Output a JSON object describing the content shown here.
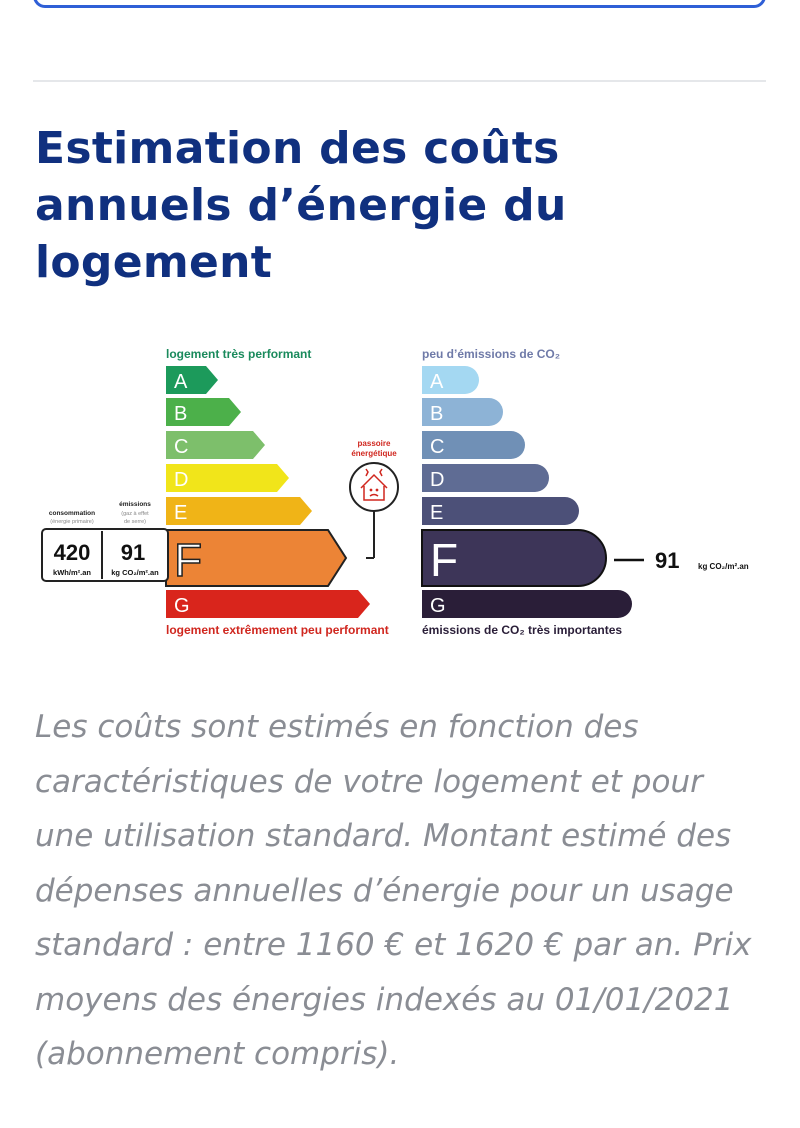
{
  "page": {
    "title": "Estimation des coûts annuels d’énergie du logement",
    "description": "Les coûts sont estimés en fonction des caractéristiques de votre logement et pour une utilisation standard. Montant estimé des dépenses annuelles d’énergie pour un usage standard : entre 1160 € et 1620 € par an. Prix moyens des énergies indexés au 01/01/2021 (abonnement compris)."
  },
  "energy_label": {
    "top_label": "logement très performant",
    "bottom_label": "logement extrêmement peu performant",
    "top_color": "#1a8a5c",
    "bottom_color": "#d0271f",
    "classes": [
      {
        "letter": "A",
        "color": "#1c9a5b"
      },
      {
        "letter": "B",
        "color": "#4cb04a"
      },
      {
        "letter": "C",
        "color": "#7dbf6b"
      },
      {
        "letter": "D",
        "color": "#f1e51a"
      },
      {
        "letter": "E",
        "color": "#f0b417"
      },
      {
        "letter": "F",
        "color": "#ec8436"
      },
      {
        "letter": "G",
        "color": "#d9251c"
      }
    ],
    "current_class": "F",
    "consumption_label": "consommation",
    "consumption_sublabel": "(énergie primaire)",
    "consumption_value": "420",
    "consumption_unit": "kWh/m².an",
    "emissions_label": "émissions",
    "emissions_sublabel_1": "(gaz à effet",
    "emissions_sublabel_2": "de serre)",
    "emissions_value": "91",
    "emissions_unit": "kg CO₂/m².an",
    "passoire_label_1": "passoire",
    "passoire_label_2": "énergétique",
    "passoire_icon": "house-icon"
  },
  "climate_label": {
    "top_label": "peu d’émissions de CO₂",
    "bottom_label": "émissions de CO₂ très importantes",
    "label_color": "#6f7aa8",
    "classes": [
      {
        "letter": "A",
        "color": "#a4d8f2"
      },
      {
        "letter": "B",
        "color": "#8db3d6"
      },
      {
        "letter": "C",
        "color": "#7090b6"
      },
      {
        "letter": "D",
        "color": "#5f6c94"
      },
      {
        "letter": "E",
        "color": "#4c5078"
      },
      {
        "letter": "F",
        "color": "#3d3558"
      },
      {
        "letter": "G",
        "color": "#2a1e38"
      }
    ],
    "current_class": "F",
    "value": "91",
    "unit": "kg CO₂/m².an"
  },
  "colors": {
    "title": "#10307f",
    "description": "#8a8d94",
    "top_card_border": "#2f5fd6"
  }
}
